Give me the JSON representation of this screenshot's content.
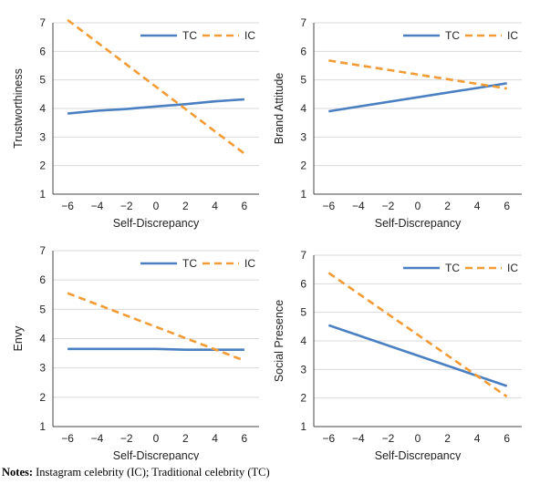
{
  "colors": {
    "TC": "#4a7fc1",
    "IC": "#f39c35",
    "grid": "#d9d9d9",
    "axis": "#444444"
  },
  "notes": {
    "label": "Notes:",
    "text": " Instagram celebrity (IC); Traditional celebrity (TC)"
  },
  "chart_data": [
    {
      "type": "line",
      "xlabel": "Self-Discrepancy",
      "ylabel": "Trustworthiness",
      "xticks": [
        -6,
        -4,
        -2,
        0,
        2,
        4,
        6
      ],
      "yticks": [
        1,
        2,
        3,
        4,
        5,
        6,
        7
      ],
      "xlim": [
        -7,
        7
      ],
      "ylim": [
        1,
        7
      ],
      "grid": true,
      "legend": "top-right",
      "series": [
        {
          "name": "TC",
          "style": "solid",
          "x": [
            -6,
            -4,
            -2,
            0,
            2,
            4,
            6
          ],
          "y": [
            3.82,
            3.92,
            3.98,
            4.07,
            4.15,
            4.25,
            4.32
          ]
        },
        {
          "name": "IC",
          "style": "dashed",
          "x": [
            -6,
            6
          ],
          "y": [
            7.1,
            2.42
          ]
        }
      ]
    },
    {
      "type": "line",
      "xlabel": "Self-Discrepancy",
      "ylabel": "Brand Attitude",
      "xticks": [
        -6,
        -4,
        -2,
        0,
        2,
        4,
        6
      ],
      "yticks": [
        1,
        2,
        3,
        4,
        5,
        6,
        7
      ],
      "xlim": [
        -7,
        7
      ],
      "ylim": [
        1,
        7
      ],
      "grid": true,
      "legend": "top-right",
      "series": [
        {
          "name": "TC",
          "style": "solid",
          "x": [
            -6,
            6
          ],
          "y": [
            3.9,
            4.88
          ]
        },
        {
          "name": "IC",
          "style": "dashed",
          "x": [
            -6,
            6
          ],
          "y": [
            5.68,
            4.7
          ]
        }
      ]
    },
    {
      "type": "line",
      "xlabel": "Self-Discrepancy",
      "ylabel": "Envy",
      "xticks": [
        -6,
        -4,
        -2,
        0,
        2,
        4,
        6
      ],
      "yticks": [
        1,
        2,
        3,
        4,
        5,
        6,
        7
      ],
      "xlim": [
        -7,
        7
      ],
      "ylim": [
        1,
        7
      ],
      "grid": true,
      "legend": "top-right",
      "series": [
        {
          "name": "TC",
          "style": "solid",
          "x": [
            -6,
            0,
            2,
            6
          ],
          "y": [
            3.65,
            3.65,
            3.62,
            3.62
          ]
        },
        {
          "name": "IC",
          "style": "dashed",
          "x": [
            -6,
            6
          ],
          "y": [
            5.55,
            3.25
          ]
        }
      ]
    },
    {
      "type": "line",
      "xlabel": "Self-Discrepancy",
      "ylabel": "Social Presence",
      "xticks": [
        -6,
        -4,
        -2,
        0,
        2,
        4,
        6
      ],
      "yticks": [
        1,
        2,
        3,
        4,
        5,
        6,
        7
      ],
      "xlim": [
        -7,
        7
      ],
      "ylim": [
        1,
        7
      ],
      "grid": true,
      "legend": "top-right",
      "series": [
        {
          "name": "TC",
          "style": "solid",
          "x": [
            -6,
            6
          ],
          "y": [
            4.55,
            2.42
          ]
        },
        {
          "name": "IC",
          "style": "dashed",
          "x": [
            -6,
            6
          ],
          "y": [
            6.38,
            2.05
          ]
        }
      ]
    }
  ]
}
